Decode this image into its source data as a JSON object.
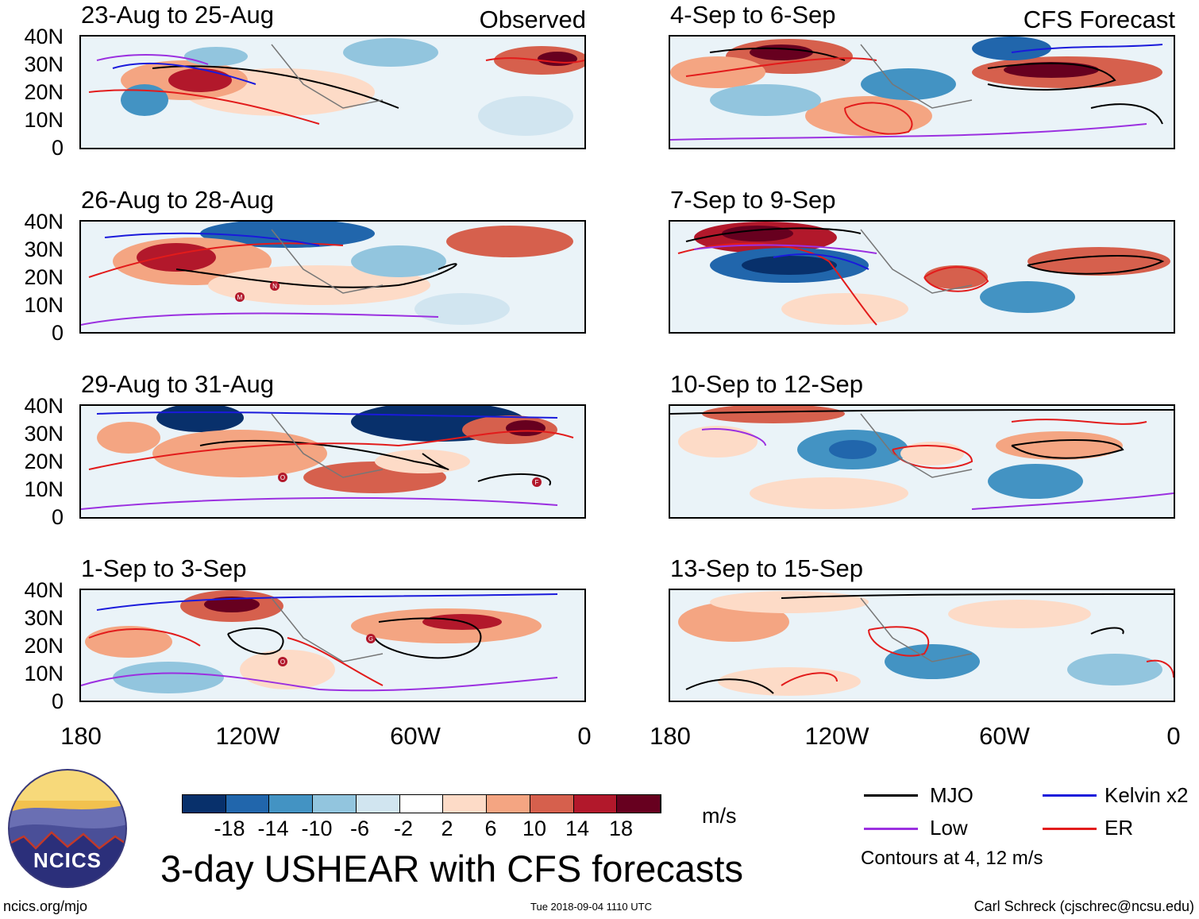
{
  "panels": [
    {
      "title": "23-Aug to 25-Aug",
      "tag": "Observed",
      "storms": []
    },
    {
      "title": "26-Aug to 28-Aug",
      "tag": "",
      "storms": [
        "M",
        "N"
      ]
    },
    {
      "title": "29-Aug to 31-Aug",
      "tag": "",
      "storms": [
        "O",
        "F"
      ]
    },
    {
      "title": "1-Sep to 3-Sep",
      "tag": "",
      "storms": [
        "O",
        "G"
      ]
    },
    {
      "title": "4-Sep to 6-Sep",
      "tag": "CFS Forecast",
      "storms": []
    },
    {
      "title": "7-Sep to 9-Sep",
      "tag": "",
      "storms": []
    },
    {
      "title": "10-Sep to 12-Sep",
      "tag": "",
      "storms": []
    },
    {
      "title": "13-Sep to 15-Sep",
      "tag": "",
      "storms": []
    }
  ],
  "axes": {
    "lat_labels": [
      "40N",
      "30N",
      "20N",
      "10N",
      "0"
    ],
    "lon_labels": [
      "180",
      "120W",
      "60W",
      "0"
    ]
  },
  "colorbar": {
    "labels": [
      "-18",
      "-14",
      "-10",
      "-6",
      "-2",
      "2",
      "6",
      "10",
      "14",
      "18"
    ],
    "unit": "m/s",
    "colors": [
      "#08306b",
      "#2166ac",
      "#4393c3",
      "#92c5de",
      "#d1e5f0",
      "#ffffff",
      "#fddbc7",
      "#f4a582",
      "#d6604d",
      "#b2182b",
      "#67001f"
    ]
  },
  "legend": {
    "mjo": "MJO",
    "kelvin": "Kelvin x2",
    "low": "Low",
    "er": "ER",
    "note": "Contours at 4, 12 m/s",
    "colors": {
      "mjo": "#000000",
      "kelvin": "#1a1adb",
      "low": "#9b30e0",
      "er": "#e21b1b"
    }
  },
  "main_title": "3-day USHEAR with CFS forecasts",
  "logo_text": "NCICS",
  "footer": {
    "url": "ncics.org/mjo",
    "timestamp": "Tue 2018-09-04 1110 UTC",
    "author": "Carl Schreck (cjschrec@ncsu.edu)"
  }
}
